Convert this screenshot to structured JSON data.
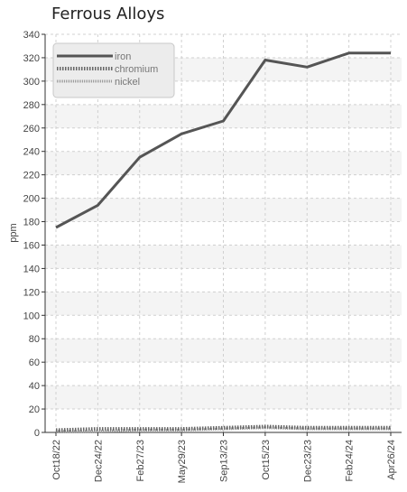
{
  "chart_data": {
    "type": "line",
    "title": "Ferrous Alloys",
    "xlabel": "",
    "ylabel": "ppm",
    "ylim": [
      0,
      340
    ],
    "yticks": [
      0,
      20,
      40,
      60,
      80,
      100,
      120,
      140,
      160,
      180,
      200,
      220,
      240,
      260,
      280,
      300,
      320,
      340
    ],
    "categories": [
      "Oct18/22",
      "Dec24/22",
      "Feb27/23",
      "May29/23",
      "Sep13/23",
      "Oct15/23",
      "Dec23/23",
      "Feb24/24",
      "Apr26/24"
    ],
    "grid": true,
    "legend_position": "top-left",
    "series": [
      {
        "name": "iron",
        "color": "#555555",
        "style": "solid",
        "values": [
          175,
          194,
          235,
          255,
          266,
          318,
          312,
          324,
          324
        ]
      },
      {
        "name": "chromium",
        "color": "#666666",
        "style": "dotted",
        "values": [
          2,
          3,
          3,
          3,
          4,
          5,
          4,
          4,
          4
        ]
      },
      {
        "name": "nickel",
        "color": "#999999",
        "style": "dashed",
        "values": [
          1,
          1,
          2,
          2,
          3,
          4,
          3,
          3,
          3
        ]
      }
    ]
  }
}
